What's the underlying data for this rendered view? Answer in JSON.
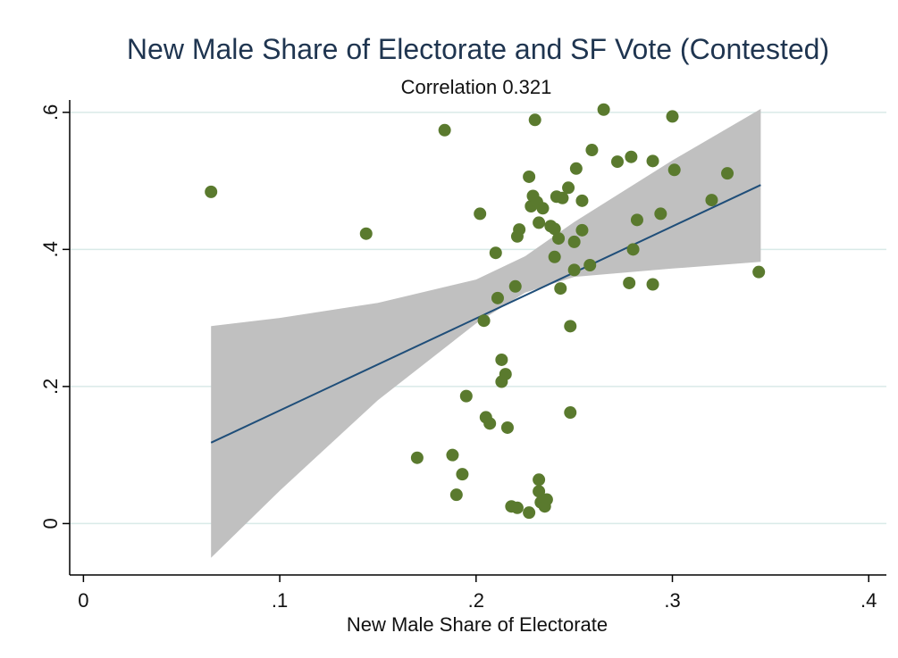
{
  "chart_data": {
    "type": "scatter",
    "title": "New Male Share of Electorate and SF Vote (Contested)",
    "subtitle": "Correlation 0.321",
    "xlabel": "New Male Share of Electorate",
    "ylabel": "",
    "xlim": [
      -0.007,
      0.409
    ],
    "ylim": [
      -0.075,
      0.618
    ],
    "x_ticks": [
      0,
      0.1,
      0.2,
      0.3,
      0.4
    ],
    "x_tick_labels": [
      "0",
      ".1",
      ".2",
      ".3",
      ".4"
    ],
    "y_ticks": [
      0,
      0.2,
      0.4,
      0.6
    ],
    "y_tick_labels": [
      "0",
      ".2",
      ".4",
      ".6"
    ],
    "grid": true,
    "colors": {
      "points": "#5a7a2e",
      "fit_line": "#1f4e79",
      "ci_band": "#c0c0c0",
      "grid": "#d9eae8",
      "axis": "#000000"
    },
    "fit_line": {
      "x": [
        0.065,
        0.345
      ],
      "y": [
        0.118,
        0.494
      ]
    },
    "ci_band": {
      "x": [
        0.065,
        0.1,
        0.15,
        0.2,
        0.225,
        0.25,
        0.3,
        0.345
      ],
      "lower": [
        -0.05,
        0.048,
        0.18,
        0.292,
        0.337,
        0.36,
        0.372,
        0.382
      ],
      "upper": [
        0.288,
        0.3,
        0.322,
        0.356,
        0.39,
        0.44,
        0.53,
        0.605
      ]
    },
    "series": [
      {
        "points": [
          [
            0.065,
            0.484
          ],
          [
            0.144,
            0.423
          ],
          [
            0.17,
            0.096
          ],
          [
            0.184,
            0.574
          ],
          [
            0.188,
            0.1
          ],
          [
            0.19,
            0.042
          ],
          [
            0.193,
            0.072
          ],
          [
            0.195,
            0.186
          ],
          [
            0.202,
            0.452
          ],
          [
            0.204,
            0.296
          ],
          [
            0.205,
            0.155
          ],
          [
            0.207,
            0.146
          ],
          [
            0.21,
            0.395
          ],
          [
            0.211,
            0.329
          ],
          [
            0.213,
            0.239
          ],
          [
            0.213,
            0.207
          ],
          [
            0.215,
            0.218
          ],
          [
            0.216,
            0.14
          ],
          [
            0.218,
            0.025
          ],
          [
            0.22,
            0.346
          ],
          [
            0.221,
            0.419
          ],
          [
            0.221,
            0.023
          ],
          [
            0.222,
            0.429
          ],
          [
            0.227,
            0.506
          ],
          [
            0.227,
            0.016
          ],
          [
            0.228,
            0.463
          ],
          [
            0.229,
            0.478
          ],
          [
            0.23,
            0.589
          ],
          [
            0.231,
            0.469
          ],
          [
            0.232,
            0.439
          ],
          [
            0.232,
            0.064
          ],
          [
            0.232,
            0.047
          ],
          [
            0.233,
            0.031
          ],
          [
            0.234,
            0.46
          ],
          [
            0.235,
            0.025
          ],
          [
            0.236,
            0.035
          ],
          [
            0.238,
            0.434
          ],
          [
            0.24,
            0.43
          ],
          [
            0.24,
            0.389
          ],
          [
            0.241,
            0.477
          ],
          [
            0.242,
            0.416
          ],
          [
            0.243,
            0.343
          ],
          [
            0.244,
            0.475
          ],
          [
            0.247,
            0.49
          ],
          [
            0.248,
            0.288
          ],
          [
            0.248,
            0.162
          ],
          [
            0.25,
            0.37
          ],
          [
            0.25,
            0.411
          ],
          [
            0.251,
            0.518
          ],
          [
            0.254,
            0.471
          ],
          [
            0.254,
            0.428
          ],
          [
            0.258,
            0.377
          ],
          [
            0.259,
            0.545
          ],
          [
            0.265,
            0.604
          ],
          [
            0.272,
            0.528
          ],
          [
            0.278,
            0.351
          ],
          [
            0.279,
            0.535
          ],
          [
            0.28,
            0.4
          ],
          [
            0.282,
            0.443
          ],
          [
            0.29,
            0.349
          ],
          [
            0.29,
            0.529
          ],
          [
            0.294,
            0.452
          ],
          [
            0.3,
            0.594
          ],
          [
            0.301,
            0.516
          ],
          [
            0.32,
            0.472
          ],
          [
            0.328,
            0.511
          ],
          [
            0.344,
            0.367
          ]
        ]
      }
    ]
  }
}
